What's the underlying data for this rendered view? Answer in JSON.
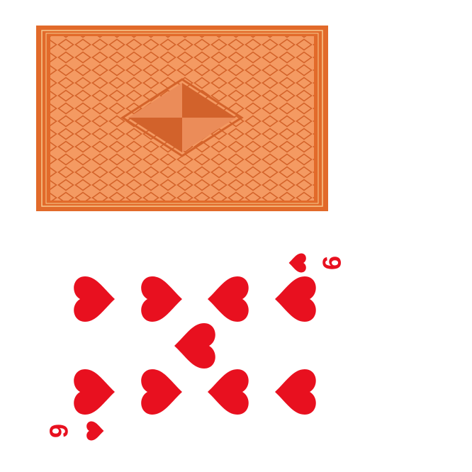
{
  "card_back": {
    "colors": {
      "border": "#e26a2a",
      "field": "#f49a62",
      "lattice": "#d4632a",
      "gold_line": "#f7c98f",
      "diamond_dark": "#d2622b",
      "diamond_light": "#eb8c59"
    }
  },
  "card_face": {
    "rank": "9",
    "suit": "hearts",
    "suit_icon": "heart-icon",
    "color": "#e8101f"
  }
}
